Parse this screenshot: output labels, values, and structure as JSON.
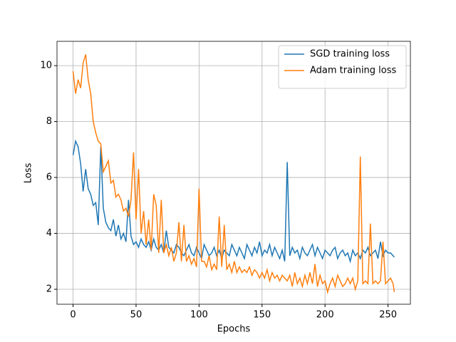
{
  "chart_data": {
    "type": "line",
    "x_label": "Epochs",
    "y_label": "Loss",
    "x": [
      0,
      2,
      4,
      6,
      8,
      10,
      12,
      14,
      16,
      18,
      20,
      22,
      24,
      26,
      28,
      30,
      32,
      34,
      36,
      38,
      40,
      42,
      44,
      46,
      48,
      50,
      52,
      54,
      56,
      58,
      60,
      62,
      64,
      66,
      68,
      70,
      72,
      74,
      76,
      78,
      80,
      82,
      84,
      86,
      88,
      90,
      92,
      94,
      96,
      98,
      100,
      102,
      104,
      106,
      108,
      110,
      112,
      114,
      116,
      118,
      120,
      122,
      124,
      126,
      128,
      130,
      132,
      134,
      136,
      138,
      140,
      142,
      144,
      146,
      148,
      150,
      152,
      154,
      156,
      158,
      160,
      162,
      164,
      166,
      168,
      170,
      172,
      174,
      176,
      178,
      180,
      182,
      184,
      186,
      188,
      190,
      192,
      194,
      196,
      198,
      200,
      202,
      204,
      206,
      208,
      210,
      212,
      214,
      216,
      218,
      220,
      222,
      224,
      226,
      228,
      230,
      232,
      234,
      236,
      238,
      240,
      242,
      244,
      246,
      248,
      250,
      252,
      254,
      255
    ],
    "series": [
      {
        "name": "SGD training loss",
        "color": "#1f77b4",
        "values": [
          6.8,
          7.3,
          7.1,
          6.5,
          5.5,
          6.3,
          5.6,
          5.4,
          5.0,
          5.1,
          4.3,
          7.1,
          4.9,
          4.4,
          4.2,
          4.1,
          4.5,
          3.9,
          4.3,
          3.8,
          4.0,
          3.7,
          5.2,
          3.9,
          3.6,
          3.7,
          3.5,
          3.8,
          3.6,
          3.5,
          3.7,
          3.4,
          3.8,
          3.5,
          3.4,
          3.6,
          3.3,
          4.1,
          3.5,
          3.4,
          3.3,
          3.6,
          3.5,
          3.3,
          3.2,
          3.4,
          3.6,
          3.3,
          3.2,
          3.5,
          3.3,
          3.1,
          3.6,
          3.4,
          3.2,
          3.3,
          3.5,
          3.2,
          3.4,
          3.1,
          3.4,
          3.3,
          3.2,
          3.6,
          3.4,
          3.2,
          3.5,
          3.3,
          3.1,
          3.6,
          3.4,
          3.2,
          3.5,
          3.3,
          3.7,
          3.2,
          3.4,
          3.3,
          3.6,
          3.2,
          3.5,
          3.3,
          3.1,
          3.4,
          3.0,
          6.55,
          3.2,
          3.5,
          3.3,
          3.4,
          3.1,
          3.5,
          3.3,
          3.2,
          3.4,
          3.6,
          3.2,
          3.5,
          3.3,
          3.1,
          3.4,
          3.3,
          3.2,
          3.4,
          3.5,
          3.1,
          3.3,
          3.4,
          3.2,
          3.3,
          3.0,
          3.4,
          3.2,
          3.3,
          3.1,
          3.4,
          3.3,
          3.5,
          3.2,
          3.3,
          3.4,
          3.1,
          3.7,
          3.2,
          3.4,
          3.3,
          3.3,
          3.2,
          3.15
        ]
      },
      {
        "name": "Adam training loss",
        "color": "#ff7f0e",
        "values": [
          9.8,
          9.0,
          9.5,
          9.2,
          10.1,
          10.4,
          9.5,
          9.0,
          8.0,
          7.6,
          7.3,
          7.2,
          6.2,
          6.4,
          6.6,
          5.8,
          5.9,
          5.3,
          5.4,
          5.2,
          4.8,
          4.9,
          4.6,
          5.2,
          6.9,
          4.5,
          6.3,
          4.0,
          4.8,
          3.6,
          4.5,
          3.4,
          5.4,
          5.0,
          3.3,
          5.2,
          3.3,
          3.6,
          3.2,
          3.5,
          3.0,
          3.3,
          4.4,
          3.0,
          4.3,
          3.0,
          3.2,
          2.9,
          3.1,
          2.8,
          5.6,
          3.0,
          3.0,
          2.8,
          3.2,
          2.7,
          2.9,
          2.7,
          4.6,
          2.8,
          4.3,
          2.7,
          2.9,
          2.6,
          3.0,
          2.6,
          2.8,
          2.6,
          2.7,
          2.6,
          2.8,
          2.5,
          2.7,
          2.6,
          2.4,
          2.6,
          2.4,
          2.7,
          2.3,
          2.6,
          2.4,
          2.5,
          2.3,
          2.5,
          2.4,
          2.3,
          2.5,
          2.1,
          2.6,
          2.2,
          2.4,
          2.1,
          2.5,
          2.2,
          2.6,
          2.2,
          2.9,
          2.1,
          2.5,
          2.2,
          2.3,
          1.9,
          2.2,
          2.4,
          2.1,
          2.5,
          2.3,
          2.1,
          2.2,
          2.4,
          2.2,
          2.4,
          2.0,
          2.3,
          6.75,
          2.2,
          2.3,
          2.2,
          4.35,
          2.2,
          2.3,
          2.2,
          2.3,
          3.7,
          2.2,
          2.3,
          2.4,
          2.2,
          1.9
        ]
      }
    ],
    "xlim": [
      -12.75,
      267.75
    ],
    "ylim": [
      1.465,
      10.87
    ],
    "xticks": [
      0,
      50,
      100,
      150,
      200,
      250
    ],
    "yticks": [
      2,
      4,
      6,
      8,
      10
    ],
    "grid": true,
    "legend": "upper right"
  }
}
